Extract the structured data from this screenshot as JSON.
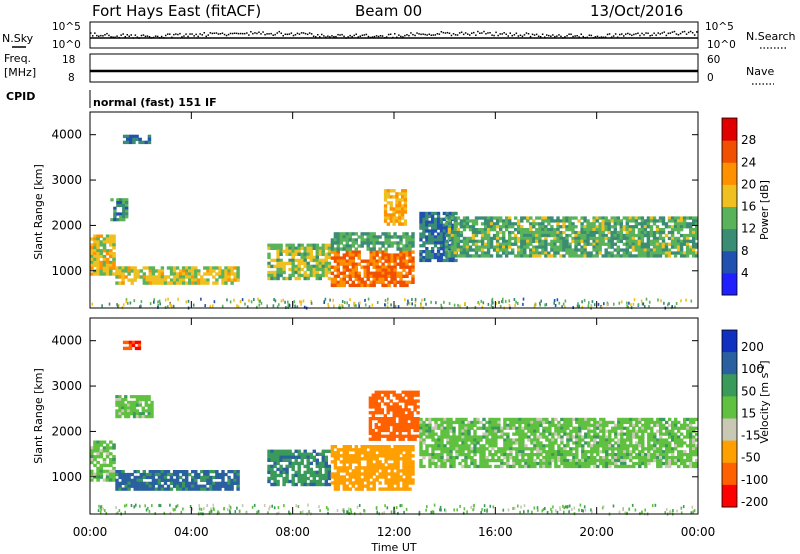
{
  "header": {
    "radar_title": "Fort Hays East (fitACF)",
    "beam": "Beam 00",
    "date": "13/Oct/2016"
  },
  "aux_panels": {
    "nsky_label": "N.Sky",
    "nsky_ticks": [
      "10^5",
      "10^0"
    ],
    "nsearch_label": "N.Search",
    "nsearch_ticks": [
      "10^5",
      "10^0"
    ],
    "freq_label_1": "Freq.",
    "freq_label_2": "[MHz]",
    "freq_ticks": [
      "18",
      "8"
    ],
    "nave_label": "Nave",
    "nave_ticks": [
      "60",
      "0"
    ],
    "cpid_label": "CPID",
    "cpid_text": "normal (fast) 151 IF"
  },
  "colors": {
    "power_scale": [
      "#2020ff",
      "#2050b0",
      "#3a8c74",
      "#5ab35a",
      "#f0c020",
      "#ff9000",
      "#f05000",
      "#e00000"
    ],
    "velocity_scale": [
      "#ff0000",
      "#ff6000",
      "#ffa000",
      "#c8c8b4",
      "#60c040",
      "#3a9a5a",
      "#2a60a0",
      "#1030c0"
    ]
  },
  "chart_data": [
    {
      "type": "heatmap",
      "title": "Power",
      "xlabel": "",
      "ylabel": "Slant Range [km]",
      "x_ticks": [
        "00:00",
        "04:00",
        "08:00",
        "12:00",
        "16:00",
        "20:00",
        "00:00"
      ],
      "x_range_hours": [
        0,
        24
      ],
      "ylim": [
        180,
        4500
      ],
      "y_ticks": [
        1000,
        2000,
        3000,
        4000
      ],
      "colorbar": {
        "label": "Power [dB]",
        "range": [
          0,
          32
        ],
        "ticks": [
          4,
          8,
          12,
          16,
          20,
          24,
          28
        ]
      },
      "regions": [
        {
          "t": [
            0.0,
            1.0
          ],
          "range_km": [
            900,
            1800
          ],
          "level_db": 18
        },
        {
          "t": [
            0.8,
            1.5
          ],
          "range_km": [
            2100,
            2600
          ],
          "level_db": 10
        },
        {
          "t": [
            1.3,
            2.4
          ],
          "range_km": [
            3800,
            4000
          ],
          "level_db": 8
        },
        {
          "t": [
            1.0,
            5.9
          ],
          "range_km": [
            700,
            1100
          ],
          "level_db": 17
        },
        {
          "t": [
            7.0,
            9.5
          ],
          "range_km": [
            800,
            1600
          ],
          "level_db": 15
        },
        {
          "t": [
            9.5,
            12.8
          ],
          "range_km": [
            650,
            1450
          ],
          "level_db": 24
        },
        {
          "t": [
            9.5,
            12.8
          ],
          "range_km": [
            1450,
            1850
          ],
          "level_db": 12
        },
        {
          "t": [
            11.6,
            12.5
          ],
          "range_km": [
            2000,
            2800
          ],
          "level_db": 20
        },
        {
          "t": [
            13.0,
            14.5
          ],
          "range_km": [
            1200,
            2300
          ],
          "level_db": 8
        },
        {
          "t": [
            14.0,
            24.0
          ],
          "range_km": [
            1300,
            2200
          ],
          "level_db": 13
        }
      ]
    },
    {
      "type": "heatmap",
      "title": "Velocity",
      "xlabel": "Time UT",
      "ylabel": "Slant Range [km]",
      "x_ticks": [
        "00:00",
        "04:00",
        "08:00",
        "12:00",
        "16:00",
        "20:00",
        "00:00"
      ],
      "x_range_hours": [
        0,
        24
      ],
      "ylim": [
        180,
        4500
      ],
      "y_ticks": [
        1000,
        2000,
        3000,
        4000
      ],
      "colorbar": {
        "label": "Velocity [m s-1]",
        "tick_labels": [
          "200",
          "100",
          "50",
          "15",
          "-15",
          "-50",
          "-100",
          "-200"
        ]
      },
      "regions": [
        {
          "t": [
            0.0,
            1.0
          ],
          "range_km": [
            900,
            1800
          ],
          "velocity": 0
        },
        {
          "t": [
            1.0,
            2.5
          ],
          "range_km": [
            2300,
            2800
          ],
          "velocity": 0
        },
        {
          "t": [
            1.3,
            2.0
          ],
          "range_km": [
            3800,
            4000
          ],
          "velocity": -200
        },
        {
          "t": [
            1.0,
            5.9
          ],
          "range_km": [
            700,
            1150
          ],
          "velocity": 60
        },
        {
          "t": [
            7.0,
            9.5
          ],
          "range_km": [
            800,
            1600
          ],
          "velocity": 40
        },
        {
          "t": [
            9.5,
            12.8
          ],
          "range_km": [
            700,
            1700
          ],
          "velocity": -80
        },
        {
          "t": [
            11.0,
            13.0
          ],
          "range_km": [
            1800,
            2900
          ],
          "velocity": -150
        },
        {
          "t": [
            13.0,
            24.0
          ],
          "range_km": [
            1200,
            2300
          ],
          "velocity": 0
        }
      ]
    }
  ],
  "axis_title_time": "Time UT",
  "power_cbar_label": "Power [dB]",
  "velocity_cbar_label": "Velocity [m s",
  "velocity_cbar_sup": "-1",
  "velocity_cbar_close": "]"
}
